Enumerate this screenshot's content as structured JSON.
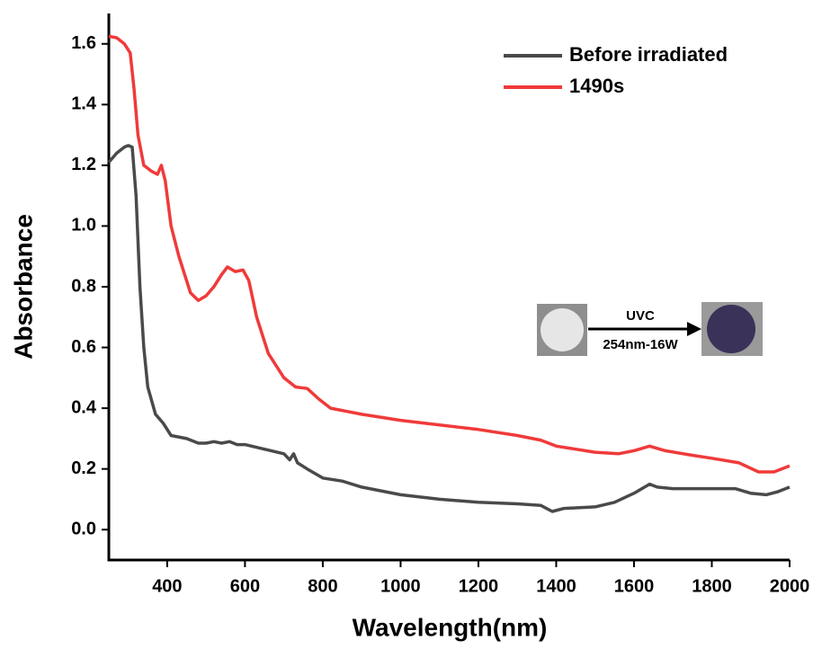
{
  "chart_data": {
    "type": "line",
    "x_label": "Wavelength(nm)",
    "y_label": "Absorbance",
    "xlim": [
      250,
      2000
    ],
    "ylim": [
      -0.1,
      1.7
    ],
    "xticks": [
      400,
      600,
      800,
      1000,
      1200,
      1400,
      1600,
      1800,
      2000
    ],
    "yticks": [
      {
        "value": 0,
        "label": "0.0"
      },
      0.2,
      0.4,
      0.6,
      0.8,
      {
        "value": 1,
        "label": "1.0"
      },
      1.2,
      1.4,
      1.6
    ],
    "legend": "top-right",
    "annotations": [
      "UVC",
      "254nm-16W"
    ],
    "series": [
      {
        "name": "Before irradiated",
        "color": "#4a4a4a",
        "x": [
          250,
          270,
          290,
          300,
          310,
          320,
          330,
          340,
          350,
          370,
          390,
          410,
          450,
          480,
          500,
          520,
          540,
          560,
          580,
          600,
          650,
          700,
          715,
          725,
          735,
          760,
          800,
          850,
          900,
          1000,
          1100,
          1200,
          1300,
          1360,
          1390,
          1420,
          1500,
          1550,
          1600,
          1640,
          1660,
          1700,
          1800,
          1860,
          1900,
          1940,
          1970,
          2000
        ],
        "values": [
          1.21,
          1.24,
          1.26,
          1.265,
          1.26,
          1.1,
          0.8,
          0.6,
          0.47,
          0.38,
          0.35,
          0.31,
          0.3,
          0.285,
          0.285,
          0.29,
          0.285,
          0.29,
          0.28,
          0.28,
          0.265,
          0.25,
          0.23,
          0.25,
          0.22,
          0.2,
          0.17,
          0.16,
          0.14,
          0.115,
          0.1,
          0.09,
          0.085,
          0.08,
          0.06,
          0.07,
          0.075,
          0.09,
          0.12,
          0.15,
          0.14,
          0.135,
          0.135,
          0.135,
          0.12,
          0.115,
          0.125,
          0.14
        ]
      },
      {
        "name": "1490s",
        "color": "#f03a3a",
        "x": [
          250,
          270,
          290,
          305,
          315,
          325,
          340,
          360,
          375,
          385,
          395,
          410,
          430,
          460,
          480,
          500,
          520,
          540,
          555,
          575,
          595,
          610,
          630,
          660,
          700,
          730,
          760,
          790,
          820,
          900,
          1000,
          1100,
          1200,
          1300,
          1360,
          1400,
          1500,
          1560,
          1600,
          1640,
          1680,
          1750,
          1800,
          1870,
          1920,
          1960,
          2000
        ],
        "values": [
          1.625,
          1.62,
          1.6,
          1.57,
          1.45,
          1.3,
          1.2,
          1.18,
          1.17,
          1.2,
          1.15,
          1.0,
          0.9,
          0.78,
          0.755,
          0.77,
          0.8,
          0.84,
          0.865,
          0.85,
          0.855,
          0.82,
          0.7,
          0.58,
          0.5,
          0.47,
          0.465,
          0.43,
          0.4,
          0.38,
          0.36,
          0.345,
          0.33,
          0.31,
          0.295,
          0.275,
          0.255,
          0.25,
          0.26,
          0.275,
          0.26,
          0.245,
          0.235,
          0.22,
          0.19,
          0.19,
          0.21
        ]
      }
    ]
  }
}
